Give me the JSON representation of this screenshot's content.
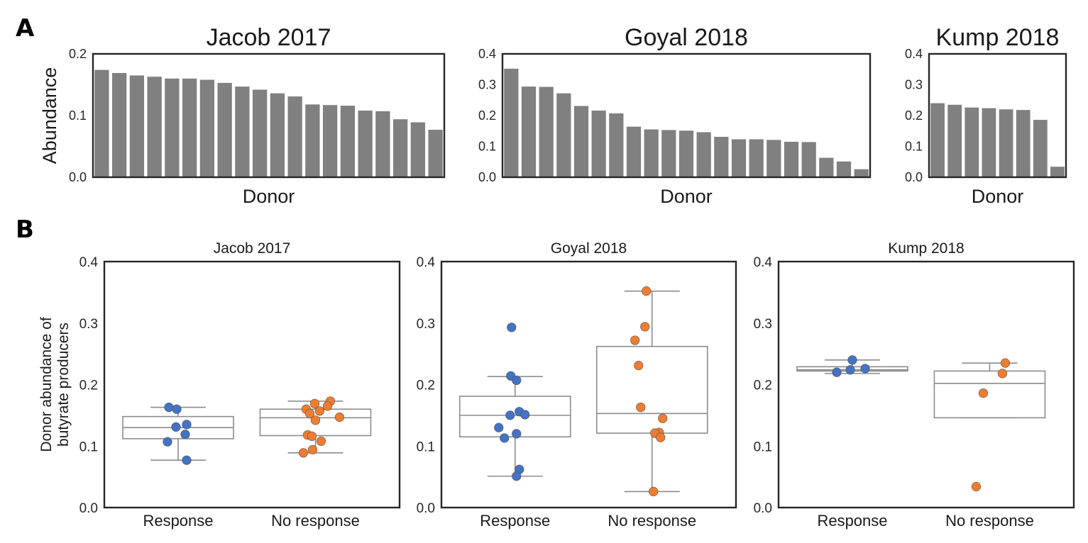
{
  "panel_labels": {
    "a": "A",
    "b": "B"
  },
  "colors": {
    "bar": "#808080",
    "response": "#4472C4",
    "no_response": "#ED7D31",
    "box": "#8c8c8c",
    "frame": "#262626"
  },
  "chart_data": [
    {
      "id": "a1",
      "type": "bar",
      "title": "Jacob 2017",
      "xlabel": "Donor",
      "ylabel": "Abundance",
      "ylim": [
        0,
        0.2
      ],
      "yticks": [
        "0.0",
        "0.1",
        "0.2"
      ],
      "grid": false,
      "values": [
        0.174,
        0.169,
        0.165,
        0.163,
        0.16,
        0.16,
        0.158,
        0.153,
        0.147,
        0.142,
        0.136,
        0.131,
        0.118,
        0.117,
        0.116,
        0.108,
        0.107,
        0.094,
        0.089,
        0.077
      ]
    },
    {
      "id": "a2",
      "type": "bar",
      "title": "Goyal 2018",
      "xlabel": "Donor",
      "ylabel": "",
      "ylim": [
        0,
        0.4
      ],
      "yticks": [
        "0.0",
        "0.1",
        "0.2",
        "0.3",
        "0.4"
      ],
      "grid": false,
      "values": [
        0.352,
        0.294,
        0.293,
        0.272,
        0.231,
        0.216,
        0.207,
        0.164,
        0.155,
        0.153,
        0.151,
        0.146,
        0.131,
        0.123,
        0.123,
        0.121,
        0.115,
        0.114,
        0.063,
        0.051,
        0.026
      ]
    },
    {
      "id": "a3",
      "type": "bar",
      "title": "Kump 2018",
      "xlabel": "Donor",
      "ylabel": "",
      "ylim": [
        0,
        0.4
      ],
      "yticks": [
        "0.0",
        "0.1",
        "0.2",
        "0.3",
        "0.4"
      ],
      "grid": false,
      "values": [
        0.24,
        0.235,
        0.226,
        0.224,
        0.22,
        0.218,
        0.186,
        0.034
      ]
    },
    {
      "id": "b1",
      "type": "box",
      "title": "Jacob 2017",
      "ylabel": "Donor abundance of\nbutyrate producers",
      "ylim": [
        0,
        0.4
      ],
      "yticks": [
        "0.0",
        "0.1",
        "0.2",
        "0.3",
        "0.4"
      ],
      "grid": false,
      "categories": [
        "Response",
        "No response"
      ],
      "groups": [
        {
          "box": {
            "q1": 0.112,
            "median": 0.13,
            "q3": 0.148,
            "lo": 0.077,
            "hi": 0.163
          },
          "points": [
            0.163,
            0.16,
            0.135,
            0.131,
            0.119,
            0.107,
            0.077
          ]
        },
        {
          "box": {
            "q1": 0.117,
            "median": 0.146,
            "q3": 0.16,
            "lo": 0.089,
            "hi": 0.173
          },
          "points": [
            0.173,
            0.169,
            0.165,
            0.16,
            0.157,
            0.153,
            0.147,
            0.142,
            0.118,
            0.116,
            0.108,
            0.094,
            0.089
          ]
        }
      ]
    },
    {
      "id": "b2",
      "type": "box",
      "title": "Goyal 2018",
      "ylabel": "",
      "ylim": [
        0,
        0.4
      ],
      "yticks": [
        "0.0",
        "0.1",
        "0.2",
        "0.3",
        "0.4"
      ],
      "grid": false,
      "categories": [
        "Response",
        "No response"
      ],
      "groups": [
        {
          "box": {
            "q1": 0.115,
            "median": 0.15,
            "q3": 0.181,
            "lo": 0.051,
            "hi": 0.213
          },
          "points": [
            0.293,
            0.214,
            0.207,
            0.156,
            0.151,
            0.15,
            0.13,
            0.12,
            0.113,
            0.062,
            0.051
          ]
        },
        {
          "box": {
            "q1": 0.121,
            "median": 0.153,
            "q3": 0.262,
            "lo": 0.026,
            "hi": 0.352
          },
          "points": [
            0.352,
            0.294,
            0.272,
            0.231,
            0.163,
            0.145,
            0.122,
            0.121,
            0.114,
            0.026
          ]
        }
      ]
    },
    {
      "id": "b3",
      "type": "box",
      "title": "Kump 2018",
      "ylabel": "",
      "ylim": [
        0,
        0.4
      ],
      "yticks": [
        "0.0",
        "0.1",
        "0.2",
        "0.3",
        "0.4"
      ],
      "grid": false,
      "categories": [
        "Response",
        "No response"
      ],
      "groups": [
        {
          "box": {
            "q1": 0.222,
            "median": 0.224,
            "q3": 0.229,
            "lo": 0.218,
            "hi": 0.24
          },
          "points": [
            0.24,
            0.226,
            0.224,
            0.22
          ]
        },
        {
          "box": {
            "q1": 0.146,
            "median": 0.202,
            "q3": 0.222,
            "lo": 0.146,
            "hi": 0.235
          },
          "points": [
            0.235,
            0.218,
            0.186,
            0.034
          ]
        }
      ]
    }
  ]
}
